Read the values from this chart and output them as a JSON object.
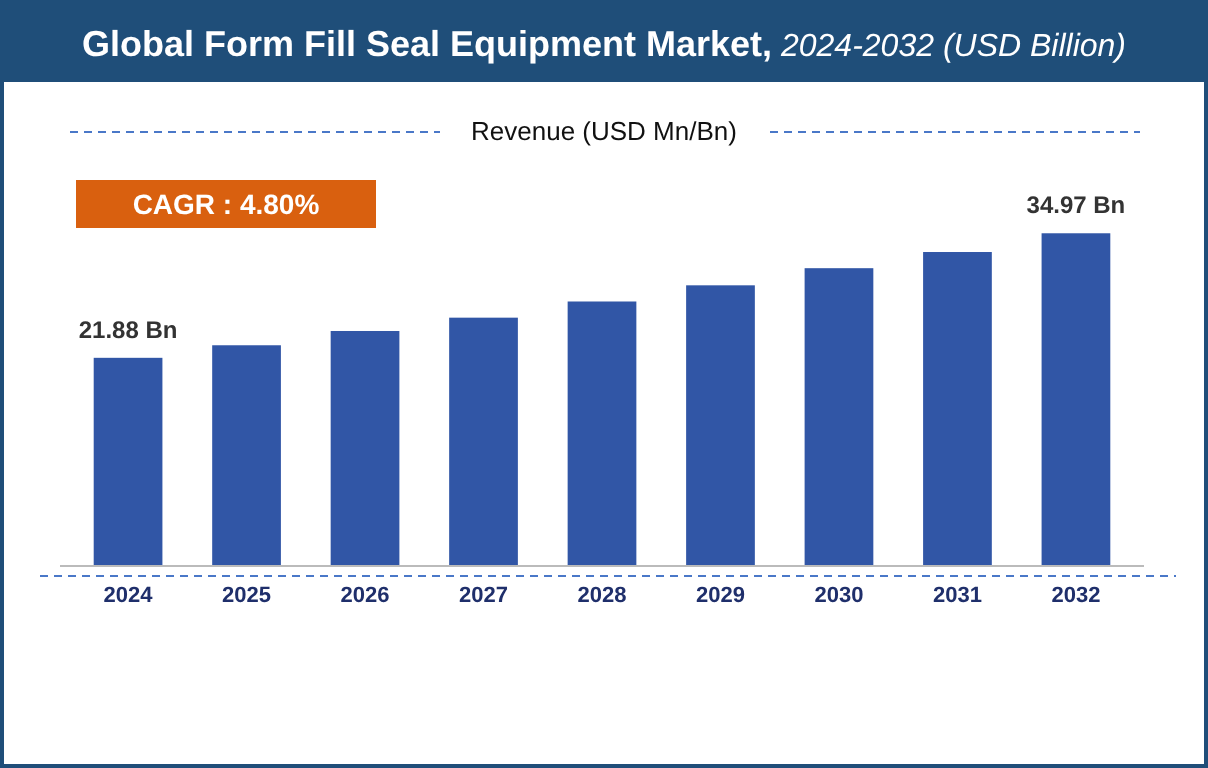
{
  "chart_data": {
    "type": "bar",
    "title": "Global Form Fill Seal Equipment Market, 2024-2032 (USD Billion)",
    "subtitle": "Revenue (USD Mn/Bn)",
    "annotations": [
      "CAGR : 4.80%"
    ],
    "categories": [
      "2024",
      "2025",
      "2026",
      "2027",
      "2028",
      "2029",
      "2030",
      "2031",
      "2032"
    ],
    "values": [
      21.88,
      23.2,
      24.7,
      26.1,
      27.8,
      29.5,
      31.3,
      33.0,
      34.97
    ],
    "value_labels": [
      "21.88 Bn",
      null,
      null,
      null,
      null,
      null,
      null,
      null,
      "34.97 Bn"
    ],
    "color": "#3156a6",
    "tick_labels": "x"
  }
}
